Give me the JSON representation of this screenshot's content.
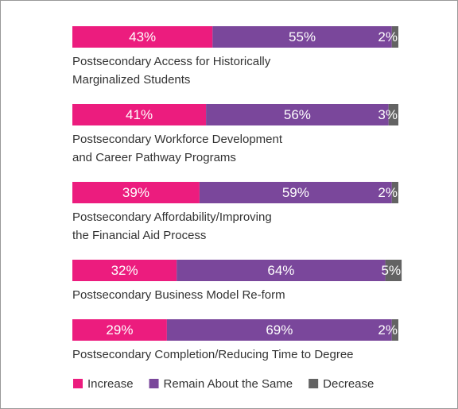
{
  "chart_data": {
    "type": "stacked-bar-horizontal",
    "categories": [
      [
        "Postsecondary Access for Historically",
        "Marginalized Students"
      ],
      [
        "Postsecondary Workforce Development",
        "and Career Pathway Programs"
      ],
      [
        "Postsecondary Affordability/Improving",
        "the Financial Aid Process"
      ],
      [
        "Postsecondary Business Model Re-form"
      ],
      [
        "Postsecondary Completion/Reducing Time to Degree"
      ]
    ],
    "series": [
      {
        "name": "Increase",
        "color": "#ec1c7e",
        "values": [
          43,
          41,
          39,
          32,
          29
        ],
        "value_labels": [
          "43%",
          "41%",
          "39%",
          "32%",
          "29%"
        ]
      },
      {
        "name": "Remain About the Same",
        "color": "#7a479b",
        "values": [
          55,
          56,
          59,
          64,
          69
        ],
        "value_labels": [
          "55%",
          "56%",
          "59%",
          "64%",
          "69%"
        ]
      },
      {
        "name": "Decrease",
        "color": "#636363",
        "values": [
          2,
          3,
          2,
          5,
          2
        ],
        "value_labels": [
          "2%",
          "3%",
          "2%",
          "5%",
          "2%"
        ]
      }
    ],
    "xlim": [
      0,
      100
    ],
    "legend": "bottom"
  }
}
